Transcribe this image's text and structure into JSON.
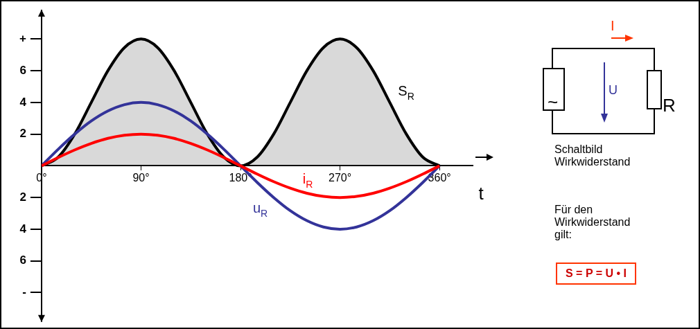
{
  "chart_data": {
    "type": "line",
    "xlabel": "t",
    "x": [
      0,
      15,
      30,
      45,
      60,
      75,
      90,
      105,
      120,
      135,
      150,
      165,
      180,
      195,
      210,
      225,
      240,
      255,
      270,
      285,
      300,
      315,
      330,
      345,
      360
    ],
    "xlim": [
      0,
      390
    ],
    "xticks": [
      {
        "value": 0,
        "label": "0°"
      },
      {
        "value": 90,
        "label": "90°"
      },
      {
        "value": 180,
        "label": "180°"
      },
      {
        "value": 270,
        "label": "270°"
      },
      {
        "value": 360,
        "label": "360°"
      }
    ],
    "ylim": [
      -9.5,
      9.5
    ],
    "yticks": [
      {
        "value": 8,
        "label": "+"
      },
      6,
      4,
      2,
      {
        "value": -2,
        "label": "2"
      },
      {
        "value": -4,
        "label": "4"
      },
      {
        "value": -6,
        "label": "6"
      },
      {
        "value": -8,
        "label": "-"
      }
    ],
    "series": [
      {
        "name": "S$_{R}$",
        "type": "area",
        "color": "#000000",
        "values": [
          0,
          0.54,
          2,
          4,
          6,
          7.46,
          8,
          7.46,
          6,
          4,
          2,
          0.54,
          0,
          0.54,
          2,
          4,
          6,
          7.46,
          8,
          7.46,
          6,
          4,
          2,
          0.54,
          0
        ]
      },
      {
        "name": "u$_{R}$",
        "color": "#333399",
        "values": [
          0,
          1.04,
          2,
          2.83,
          3.46,
          3.86,
          4,
          3.86,
          3.46,
          2.83,
          2,
          1.04,
          0,
          -1.04,
          -2,
          -2.83,
          -3.46,
          -3.86,
          -4,
          -3.86,
          -3.46,
          -2.83,
          -2,
          -1.04,
          0
        ]
      },
      {
        "name": "i$_{R}$",
        "color": "#ff0000",
        "values": [
          0,
          0.52,
          1,
          1.41,
          1.73,
          1.93,
          2,
          1.93,
          1.73,
          1.41,
          1,
          0.52,
          0,
          -0.52,
          -1,
          -1.41,
          -1.73,
          -1.93,
          -2,
          -1.93,
          -1.73,
          -1.41,
          -1,
          -0.52,
          0
        ]
      }
    ],
    "annotations": [
      "I",
      "U",
      "R",
      "~",
      "Schaltbild\nWirkwiderstand",
      "Für den\nWirkwiderstand\ngilt:",
      "S = P = U • I"
    ],
    "grid": false,
    "legend": false,
    "marker": "none",
    "line_style": "solid"
  }
}
